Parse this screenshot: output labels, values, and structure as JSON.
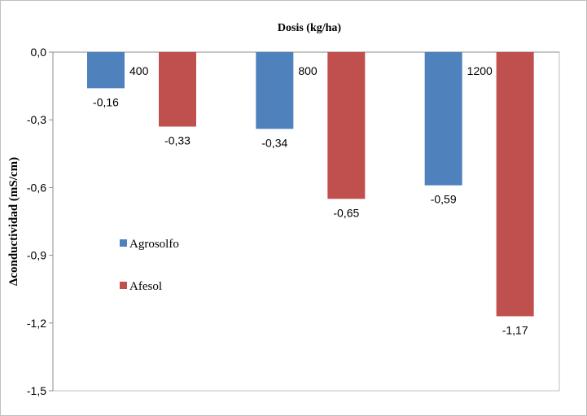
{
  "chart_data": {
    "type": "bar",
    "title": "Dosis (kg/ha)",
    "xlabel": "",
    "ylabel": "Δconductividad (mS/cm)",
    "categories": [
      "400",
      "800",
      "1200"
    ],
    "series": [
      {
        "name": "Agrosolfo",
        "values": [
          -0.16,
          -0.34,
          -0.59
        ],
        "labels": [
          "-0,16",
          "-0,34",
          "-0,59"
        ],
        "color": "#4f81bd"
      },
      {
        "name": "Afesol",
        "values": [
          -0.33,
          -0.65,
          -1.17
        ],
        "labels": [
          "-0,33",
          "-0,65",
          "-1,17"
        ],
        "color": "#c0504d"
      }
    ],
    "ylim": [
      -1.5,
      0.0
    ],
    "yticks": [
      0.0,
      -0.3,
      -0.6,
      -0.9,
      -1.2,
      -1.5
    ],
    "ytick_labels": [
      "0,0",
      "-0,3",
      "-0,6",
      "-0,9",
      "-1,2",
      "-1,5"
    ],
    "grid": false,
    "legend_position": "left-middle",
    "category_label_position": "top"
  }
}
